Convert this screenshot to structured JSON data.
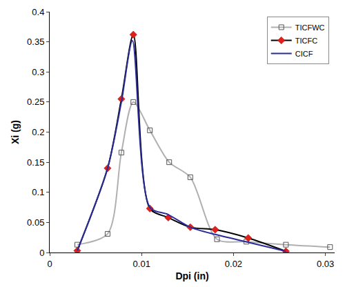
{
  "chart_data": {
    "type": "line",
    "x_label": "Dpi (in)",
    "y_label": "Xi (g)",
    "xlim": [
      0,
      0.031
    ],
    "xticks": [
      0,
      0.01,
      0.02,
      0.03
    ],
    "ylim": [
      0,
      0.4
    ],
    "yticks": [
      0,
      0.05,
      0.1,
      0.15,
      0.2,
      0.25,
      0.3,
      0.35,
      0.4
    ],
    "grid": false,
    "legend": "top-right",
    "series": [
      {
        "name": "TICFWC",
        "color": "#b0b0b0",
        "marker": "square-open",
        "line_style": "solid",
        "x": [
          0.003,
          0.0063,
          0.0078,
          0.0091,
          0.0109,
          0.013,
          0.0153,
          0.0182,
          0.0214,
          0.0257,
          0.0305
        ],
        "values": [
          0.013,
          0.031,
          0.166,
          0.25,
          0.203,
          0.15,
          0.125,
          0.022,
          0.018,
          0.013,
          0.009
        ]
      },
      {
        "name": "TICFC",
        "color": "#000000",
        "marker": "diamond",
        "line_style": "solid",
        "x": [
          0.003,
          0.0063,
          0.0078,
          0.0091,
          0.0109,
          0.0129,
          0.0153,
          0.018,
          0.0216,
          0.0257
        ],
        "values": [
          0.003,
          0.14,
          0.255,
          0.362,
          0.073,
          0.058,
          0.042,
          0.038,
          0.024,
          0.002
        ]
      },
      {
        "name": "CICF",
        "color": "#2b2b9a",
        "marker": "none",
        "line_style": "solid",
        "x": [
          0.003,
          0.0063,
          0.0078,
          0.009,
          0.0109,
          0.0129,
          0.0153,
          0.018,
          0.0216,
          0.0257
        ],
        "values": [
          0.003,
          0.14,
          0.25,
          0.352,
          0.075,
          0.063,
          0.042,
          0.03,
          0.017,
          0.002
        ]
      }
    ]
  }
}
